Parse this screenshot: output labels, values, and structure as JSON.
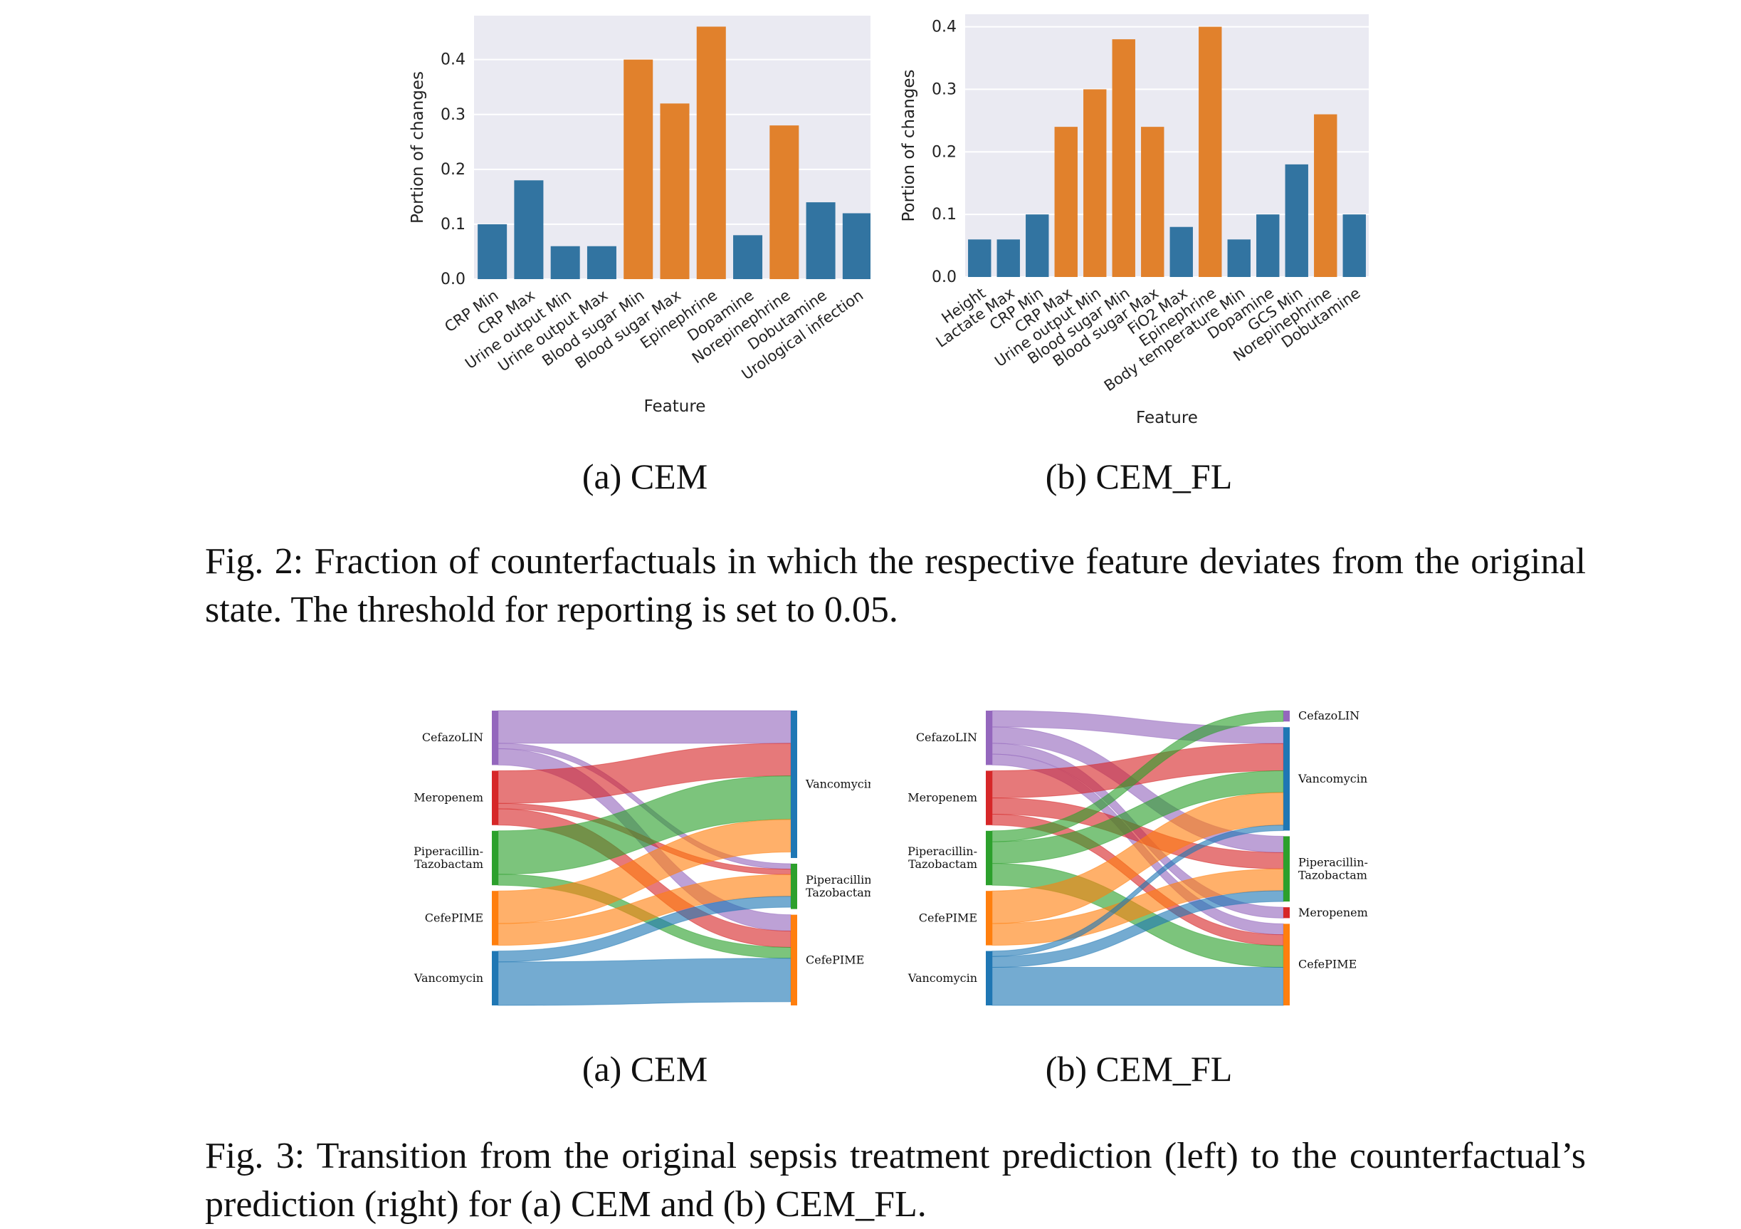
{
  "fig2": {
    "panels": [
      {
        "subcaption": "(a) CEM",
        "chart_data": {
          "type": "bar",
          "xlabel": "Feature",
          "ylabel": "Portion of changes",
          "ylim": [
            0,
            0.48
          ],
          "yticks": [
            "0.0",
            "0.1",
            "0.2",
            "0.3",
            "0.4"
          ],
          "grid": true,
          "categories": [
            "CRP Min",
            "CRP Max",
            "Urine output Min",
            "Urine output Max",
            "Blood sugar Min",
            "Blood sugar Max",
            "Epinephrine",
            "Dopamine",
            "Norepinephrine",
            "Dobutamine",
            "Urological infection"
          ],
          "values": [
            0.1,
            0.18,
            0.06,
            0.06,
            0.4,
            0.32,
            0.46,
            0.08,
            0.28,
            0.14,
            0.12
          ],
          "bar_groups": [
            "blue",
            "blue",
            "blue",
            "blue",
            "orange",
            "orange",
            "orange",
            "blue",
            "orange",
            "blue",
            "blue"
          ]
        }
      },
      {
        "subcaption": "(b) CEM_FL",
        "chart_data": {
          "type": "bar",
          "xlabel": "Feature",
          "ylabel": "Portion of changes",
          "ylim": [
            0,
            0.42
          ],
          "yticks": [
            "0.0",
            "0.1",
            "0.2",
            "0.3",
            "0.4"
          ],
          "grid": true,
          "categories": [
            "Height",
            "Lactate Max",
            "CRP Min",
            "CRP Max",
            "Urine output Min",
            "Blood sugar Min",
            "Blood sugar Max",
            "FiO2 Max",
            "Epinephrine",
            "Body temperature Min",
            "Dopamine",
            "GCS Min",
            "Norepinephrine",
            "Dobutamine"
          ],
          "values": [
            0.06,
            0.06,
            0.1,
            0.24,
            0.3,
            0.38,
            0.24,
            0.08,
            0.4,
            0.06,
            0.1,
            0.18,
            0.26,
            0.1
          ],
          "bar_groups": [
            "blue",
            "blue",
            "blue",
            "orange",
            "orange",
            "orange",
            "orange",
            "blue",
            "orange",
            "blue",
            "blue",
            "blue",
            "orange",
            "blue"
          ]
        }
      }
    ],
    "caption_label": "Fig. 2:",
    "caption_text": "Fraction of counterfactuals in which the respective feature deviates from the original state. The threshold for reporting is set to 0.05."
  },
  "fig3": {
    "panels": [
      {
        "subcaption": "(a) CEM",
        "chart_data": {
          "type": "sankey",
          "left_nodes": [
            "CefazoLIN",
            "Meropenem",
            "Piperacillin-\nTazobactam",
            "CefePIME",
            "Vancomycin"
          ],
          "right_nodes": [
            "Vancomycin",
            "Piperacillin-\nTazobactam",
            "CefePIME"
          ],
          "flows": [
            {
              "from": "CefazoLIN",
              "to": "Vancomycin",
              "value": 6
            },
            {
              "from": "CefazoLIN",
              "to": "Piperacillin-\nTazobactam",
              "value": 1
            },
            {
              "from": "CefazoLIN",
              "to": "CefePIME",
              "value": 3
            },
            {
              "from": "Meropenem",
              "to": "Vancomycin",
              "value": 6
            },
            {
              "from": "Meropenem",
              "to": "Piperacillin-\nTazobactam",
              "value": 1
            },
            {
              "from": "Meropenem",
              "to": "CefePIME",
              "value": 3
            },
            {
              "from": "Piperacillin-\nTazobactam",
              "to": "Vancomycin",
              "value": 8
            },
            {
              "from": "Piperacillin-\nTazobactam",
              "to": "CefePIME",
              "value": 2
            },
            {
              "from": "CefePIME",
              "to": "Vancomycin",
              "value": 6
            },
            {
              "from": "CefePIME",
              "to": "Piperacillin-\nTazobactam",
              "value": 4
            },
            {
              "from": "Vancomycin",
              "to": "Piperacillin-\nTazobactam",
              "value": 2
            },
            {
              "from": "Vancomycin",
              "to": "CefePIME",
              "value": 8
            }
          ]
        }
      },
      {
        "subcaption": "(b) CEM_FL",
        "chart_data": {
          "type": "sankey",
          "left_nodes": [
            "CefazoLIN",
            "Meropenem",
            "Piperacillin-\nTazobactam",
            "CefePIME",
            "Vancomycin"
          ],
          "right_nodes": [
            "CefazoLIN",
            "Vancomycin",
            "Piperacillin-\nTazobactam",
            "Meropenem",
            "CefePIME"
          ],
          "flows": [
            {
              "from": "CefazoLIN",
              "to": "Vancomycin",
              "value": 3
            },
            {
              "from": "CefazoLIN",
              "to": "Piperacillin-\nTazobactam",
              "value": 3
            },
            {
              "from": "CefazoLIN",
              "to": "Meropenem",
              "value": 2
            },
            {
              "from": "CefazoLIN",
              "to": "CefePIME",
              "value": 2
            },
            {
              "from": "Meropenem",
              "to": "Vancomycin",
              "value": 5
            },
            {
              "from": "Meropenem",
              "to": "Piperacillin-\nTazobactam",
              "value": 3
            },
            {
              "from": "Meropenem",
              "to": "CefePIME",
              "value": 2
            },
            {
              "from": "Piperacillin-\nTazobactam",
              "to": "CefazoLIN",
              "value": 2
            },
            {
              "from": "Piperacillin-\nTazobactam",
              "to": "Vancomycin",
              "value": 4
            },
            {
              "from": "Piperacillin-\nTazobactam",
              "to": "CefePIME",
              "value": 4
            },
            {
              "from": "CefePIME",
              "to": "Vancomycin",
              "value": 6
            },
            {
              "from": "CefePIME",
              "to": "Piperacillin-\nTazobactam",
              "value": 4
            },
            {
              "from": "Vancomycin",
              "to": "Vancomycin",
              "value": 1
            },
            {
              "from": "Vancomycin",
              "to": "Piperacillin-\nTazobactam",
              "value": 2
            },
            {
              "from": "Vancomycin",
              "to": "CefePIME",
              "value": 7
            }
          ]
        }
      }
    ],
    "caption_label": "Fig. 3:",
    "caption_text": "Transition from the original sepsis treatment prediction (left) to the counterfactual’s prediction (right) for (a) CEM and (b) CEM_FL."
  },
  "colors": {
    "bar_blue": "#3274a1",
    "bar_orange": "#e1812c",
    "axes_bg": "#eaeaf2",
    "CefazoLIN": "#9467bd",
    "Meropenem": "#d62728",
    "Piperacillin-\nTazobactam": "#2ca02c",
    "CefePIME": "#ff7f0e",
    "Vancomycin": "#1f77b4"
  }
}
